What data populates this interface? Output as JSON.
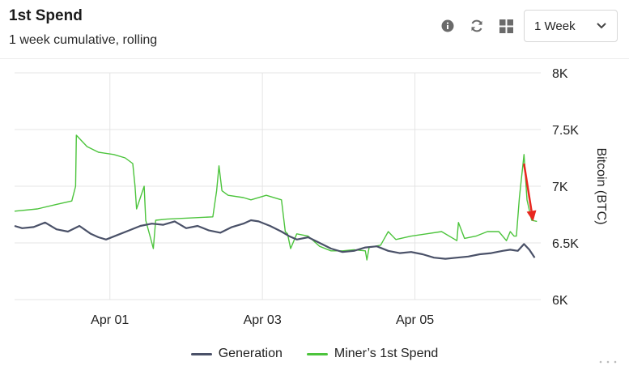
{
  "header": {
    "title": "1st Spend",
    "subtitle": "1 week cumulative, rolling"
  },
  "toolbar": {
    "icons": [
      "info-icon",
      "refresh-icon",
      "grid-icon"
    ],
    "range_select": {
      "value": "1 Week"
    }
  },
  "colors": {
    "generation": "#4a5168",
    "miner_first_spend": "#4cc43c",
    "annotation_arrow": "#e8271f",
    "grid": "#e4e4e4"
  },
  "chart_data": {
    "type": "line",
    "title": "",
    "xlabel": "",
    "ylabel": "Bitcoin (BTC)",
    "ylim": [
      6000,
      8000
    ],
    "y_ticks": [
      {
        "value": 8000,
        "label": "8K"
      },
      {
        "value": 7500,
        "label": "7.5K"
      },
      {
        "value": 7000,
        "label": "7K"
      },
      {
        "value": 6500,
        "label": "6.5K"
      },
      {
        "value": 6000,
        "label": "6K"
      }
    ],
    "xlim": [
      0,
      6.9
    ],
    "x_ticks": [
      {
        "value": 1.25,
        "label": "Apr 01"
      },
      {
        "value": 3.25,
        "label": "Apr 03"
      },
      {
        "value": 5.25,
        "label": "Apr 05"
      }
    ],
    "grid": true,
    "legend_position": "bottom",
    "series": [
      {
        "name": "Generation",
        "x": [
          0.0,
          0.1,
          0.25,
          0.4,
          0.55,
          0.7,
          0.85,
          1.0,
          1.1,
          1.2,
          1.35,
          1.5,
          1.65,
          1.8,
          1.95,
          2.1,
          2.25,
          2.4,
          2.55,
          2.7,
          2.85,
          3.0,
          3.1,
          3.2,
          3.35,
          3.5,
          3.6,
          3.7,
          3.85,
          4.0,
          4.15,
          4.3,
          4.45,
          4.6,
          4.75,
          4.9,
          5.05,
          5.2,
          5.35,
          5.5,
          5.65,
          5.8,
          5.95,
          6.1,
          6.25,
          6.4,
          6.5,
          6.6,
          6.68,
          6.75,
          6.82
        ],
        "y": [
          6650,
          6630,
          6640,
          6680,
          6620,
          6600,
          6650,
          6580,
          6550,
          6530,
          6570,
          6610,
          6650,
          6670,
          6660,
          6690,
          6630,
          6650,
          6610,
          6590,
          6640,
          6670,
          6700,
          6690,
          6650,
          6600,
          6560,
          6530,
          6550,
          6500,
          6450,
          6420,
          6430,
          6460,
          6470,
          6430,
          6410,
          6420,
          6400,
          6370,
          6360,
          6370,
          6380,
          6400,
          6410,
          6430,
          6440,
          6430,
          6490,
          6440,
          6370
        ]
      },
      {
        "name": "Miner’s 1st Spend",
        "x": [
          0.0,
          0.3,
          0.55,
          0.75,
          0.8,
          0.81,
          0.95,
          1.1,
          1.3,
          1.45,
          1.55,
          1.58,
          1.6,
          1.7,
          1.72,
          1.8,
          1.82,
          1.85,
          2.0,
          2.3,
          2.6,
          2.65,
          2.68,
          2.72,
          2.8,
          3.0,
          3.1,
          3.3,
          3.5,
          3.55,
          3.58,
          3.62,
          3.7,
          3.85,
          4.0,
          4.15,
          4.3,
          4.45,
          4.6,
          4.62,
          4.65,
          4.8,
          4.9,
          5.0,
          5.2,
          5.4,
          5.6,
          5.8,
          5.82,
          5.9,
          6.05,
          6.2,
          6.35,
          6.45,
          6.5,
          6.55,
          6.58,
          6.62,
          6.68,
          6.72,
          6.78,
          6.85
        ],
        "y": [
          6780,
          6800,
          6840,
          6870,
          7000,
          7450,
          7350,
          7300,
          7280,
          7250,
          7200,
          7000,
          6800,
          7000,
          6700,
          6500,
          6450,
          6700,
          6710,
          6720,
          6730,
          6960,
          7180,
          6960,
          6920,
          6900,
          6880,
          6920,
          6880,
          6600,
          6580,
          6450,
          6580,
          6560,
          6470,
          6430,
          6430,
          6440,
          6430,
          6350,
          6460,
          6480,
          6600,
          6530,
          6560,
          6580,
          6600,
          6520,
          6680,
          6540,
          6560,
          6600,
          6600,
          6520,
          6600,
          6560,
          6560,
          6900,
          7280,
          6880,
          6700,
          6690
        ]
      }
    ],
    "annotations": [
      {
        "type": "arrow",
        "from": [
          6.68,
          7200
        ],
        "to": [
          6.8,
          6690
        ]
      }
    ]
  }
}
